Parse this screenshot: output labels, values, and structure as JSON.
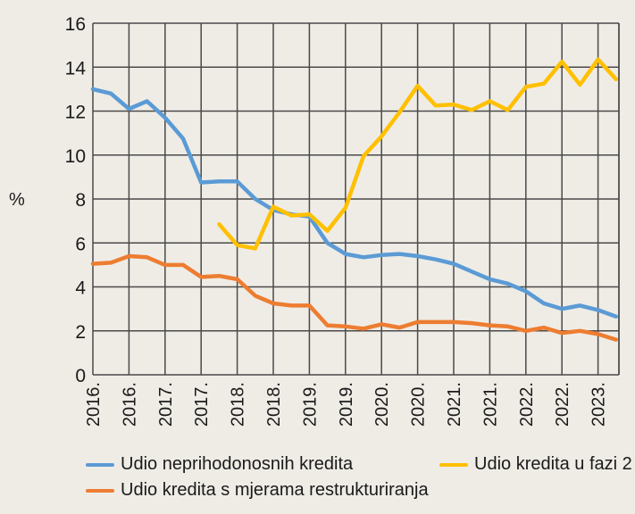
{
  "chart_data": {
    "type": "line",
    "title": "",
    "xlabel": "",
    "ylabel": "%",
    "ylim": [
      0,
      16
    ],
    "yticks": [
      "0",
      "2",
      "4",
      "6",
      "8",
      "10",
      "12",
      "14",
      "16"
    ],
    "xtick_labels": [
      "2016.",
      "2016.",
      "2017.",
      "2017.",
      "2018.",
      "2018.",
      "2019.",
      "2019.",
      "2020.",
      "2020.",
      "2021.",
      "2021.",
      "2022.",
      "2022.",
      "2023."
    ],
    "grid": true,
    "legend_position": "bottom",
    "x": [
      "Q1 2016",
      "Q2 2016",
      "Q3 2016",
      "Q4 2016",
      "Q1 2017",
      "Q2 2017",
      "Q3 2017",
      "Q4 2017",
      "Q1 2018",
      "Q2 2018",
      "Q3 2018",
      "Q4 2018",
      "Q1 2019",
      "Q2 2019",
      "Q3 2019",
      "Q4 2019",
      "Q1 2020",
      "Q2 2020",
      "Q3 2020",
      "Q4 2020",
      "Q1 2021",
      "Q2 2021",
      "Q3 2021",
      "Q4 2021",
      "Q1 2022",
      "Q2 2022",
      "Q3 2022",
      "Q4 2022",
      "Q1 2023",
      "Q2 2023"
    ],
    "series": [
      {
        "name": "Udio neprihodonosnih kredita",
        "color": "#5b9bd5",
        "values": [
          13.0,
          12.8,
          12.1,
          12.45,
          11.7,
          10.75,
          8.75,
          8.8,
          8.8,
          8.0,
          7.5,
          7.3,
          7.2,
          6.0,
          5.5,
          5.35,
          5.45,
          5.5,
          5.4,
          5.25,
          5.05,
          4.7,
          4.35,
          4.15,
          3.8,
          3.25,
          3.0,
          3.15,
          2.95,
          2.65
        ]
      },
      {
        "name": "Udio kredita u fazi 2",
        "color": "#ffc000",
        "values": [
          null,
          null,
          null,
          null,
          null,
          null,
          null,
          6.85,
          5.9,
          5.75,
          7.65,
          7.25,
          7.3,
          6.55,
          7.6,
          9.95,
          10.85,
          11.95,
          13.15,
          12.25,
          12.3,
          12.05,
          12.45,
          12.05,
          13.1,
          13.25,
          14.25,
          13.2,
          14.35,
          13.45
        ]
      },
      {
        "name": "Udio kredita s mjerama restrukturiranja",
        "color": "#ed7d31",
        "values": [
          5.05,
          5.1,
          5.4,
          5.35,
          5.0,
          5.0,
          4.45,
          4.5,
          4.35,
          3.6,
          3.25,
          3.15,
          3.15,
          2.25,
          2.2,
          2.1,
          2.3,
          2.15,
          2.4,
          2.4,
          2.4,
          2.35,
          2.25,
          2.2,
          2.0,
          2.15,
          1.9,
          2.0,
          1.85,
          1.6
        ]
      }
    ]
  },
  "legend": {
    "items": [
      {
        "label": "Udio neprihodonosnih kredita",
        "color": "#5b9bd5"
      },
      {
        "label": "Udio kredita u fazi 2",
        "color": "#ffc000"
      },
      {
        "label": "Udio kredita s mjerama restrukturiranja",
        "color": "#ed7d31"
      }
    ]
  }
}
